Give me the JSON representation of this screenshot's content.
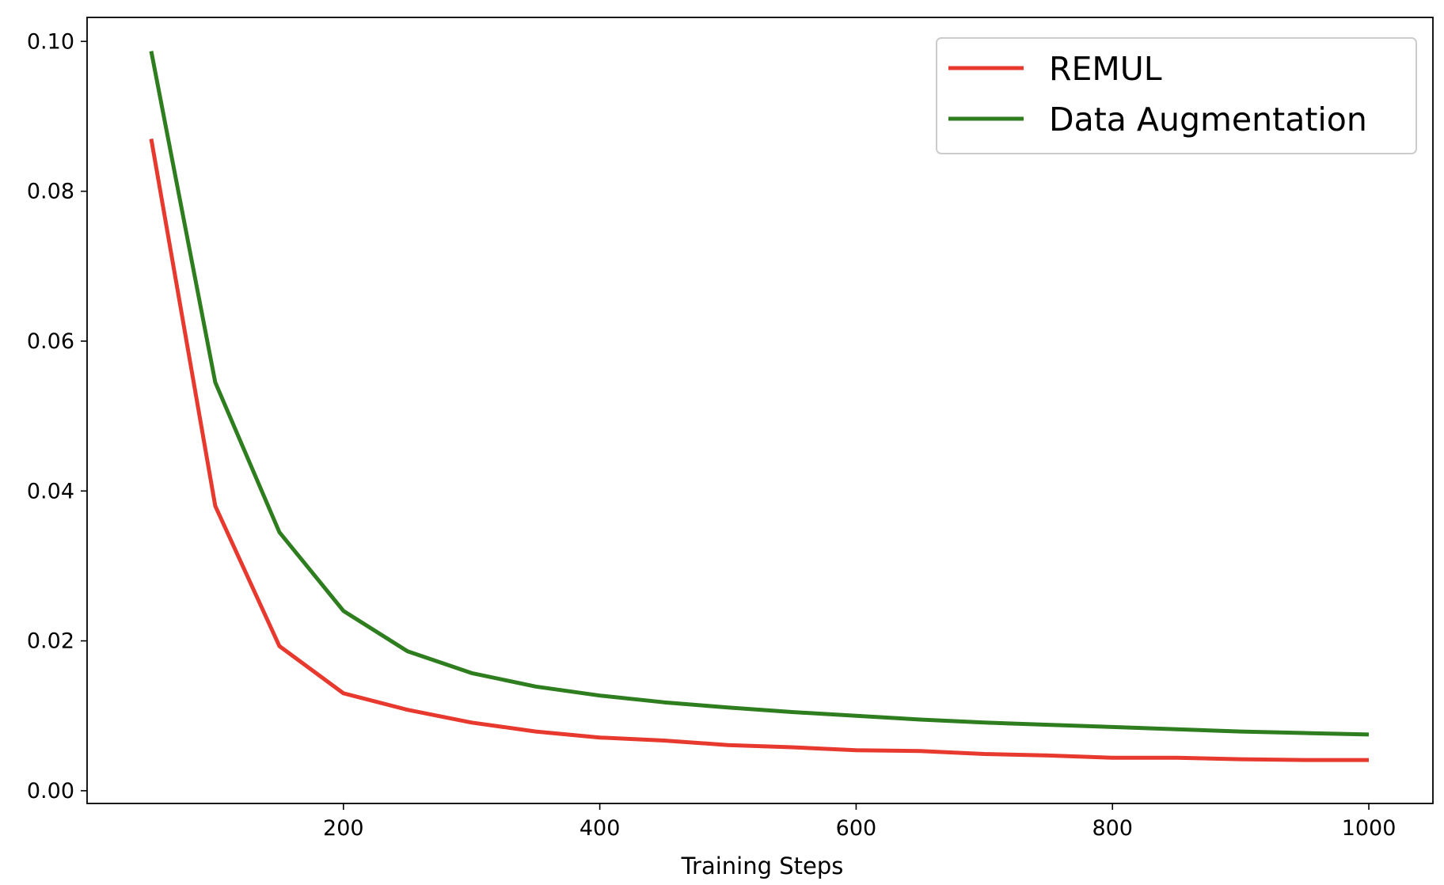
{
  "chart_data": {
    "type": "line",
    "title": "",
    "xlabel": "Training Steps",
    "ylabel": "",
    "xlim": [
      0,
      1050
    ],
    "ylim": [
      -0.0017,
      0.1032
    ],
    "xticks": [
      200,
      400,
      600,
      800,
      1000
    ],
    "xtick_labels": [
      "200",
      "400",
      "600",
      "800",
      "1000"
    ],
    "yticks": [
      0.0,
      0.02,
      0.04,
      0.06,
      0.08,
      0.1
    ],
    "ytick_labels": [
      "0.00",
      "0.02",
      "0.04",
      "0.06",
      "0.08",
      "0.10"
    ],
    "grid": false,
    "legend_position": "upper right",
    "x": [
      50,
      100,
      150,
      200,
      250,
      300,
      350,
      400,
      450,
      500,
      550,
      600,
      650,
      700,
      750,
      800,
      850,
      900,
      950,
      1000
    ],
    "series": [
      {
        "name": "REMUL",
        "color": "#e8392e",
        "values": [
          0.087,
          0.038,
          0.0193,
          0.013,
          0.0108,
          0.0091,
          0.0079,
          0.0071,
          0.0067,
          0.0061,
          0.0058,
          0.0054,
          0.0053,
          0.0049,
          0.0047,
          0.0044,
          0.0044,
          0.0042,
          0.0041,
          0.0041
        ]
      },
      {
        "name": "Data Augmentation",
        "color": "#2e7d1f",
        "values": [
          0.0987,
          0.0545,
          0.0345,
          0.024,
          0.0186,
          0.0157,
          0.0139,
          0.0127,
          0.0118,
          0.0111,
          0.0105,
          0.01,
          0.0095,
          0.0091,
          0.0088,
          0.0085,
          0.0082,
          0.0079,
          0.0077,
          0.0075
        ]
      }
    ]
  }
}
